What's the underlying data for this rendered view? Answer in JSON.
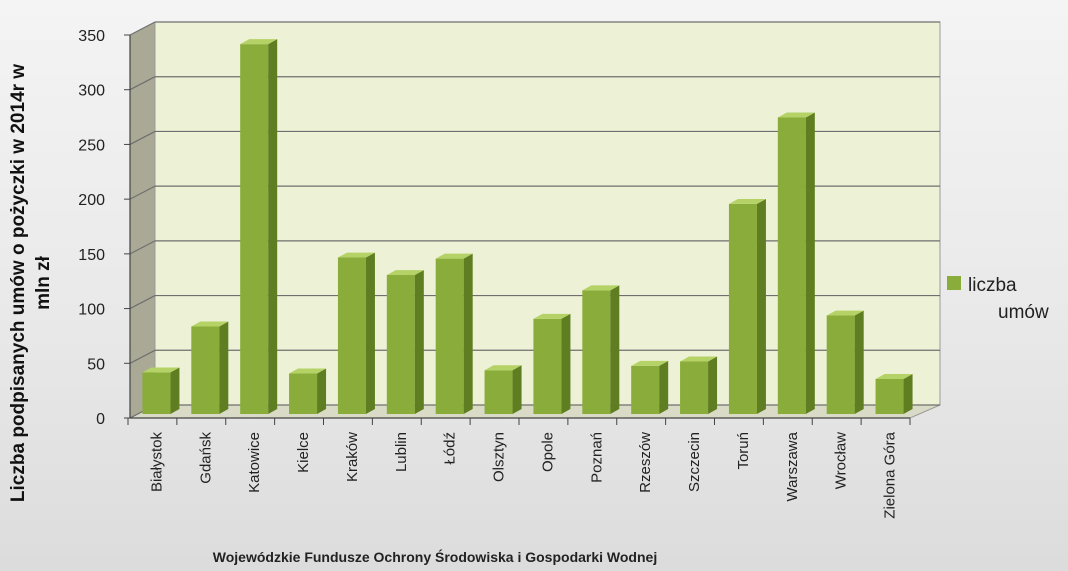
{
  "chart_data": {
    "type": "bar",
    "categories": [
      "Białystok",
      "Gdańsk",
      "Katowice",
      "Kielce",
      "Kraków",
      "Lublin",
      "Łódź",
      "Olsztyn",
      "Opole",
      "Poznań",
      "Rzeszów",
      "Szczecin",
      "Toruń",
      "Warszawa",
      "Wrocław",
      "Zielona Góra"
    ],
    "series": [
      {
        "name": "liczba umów",
        "values": [
          38,
          80,
          338,
          37,
          143,
          127,
          142,
          40,
          87,
          113,
          44,
          48,
          192,
          271,
          90,
          32
        ]
      }
    ],
    "xlabel": "Wojewódzkie Fundusze Ochrony Środowiska i Gospodarki Wodnej",
    "ylabel": "Liczba podpisanych umów o pożyczki w 2014r w mln zł",
    "ylim": [
      0,
      350
    ],
    "yticks": [
      0,
      50,
      100,
      150,
      200,
      250,
      300,
      350
    ],
    "grid": true,
    "legend_position": "right",
    "bar_color": "#8aac3a",
    "bar_side_color": "#5f7d21",
    "bar_top_color": "#b5d267",
    "wall_color": "#edf1d6",
    "side_wall_color": "#a9a996"
  }
}
